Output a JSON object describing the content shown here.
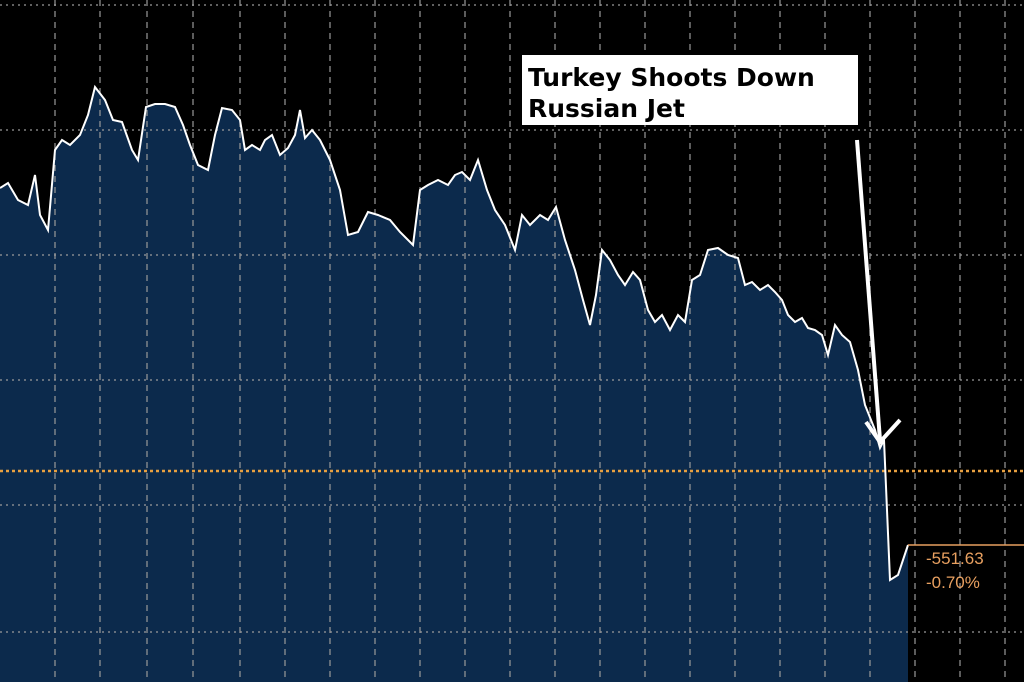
{
  "chart_data": {
    "type": "area",
    "annotation": [
      "Turkey Shoots Down",
      "Russian Jet"
    ],
    "x": [
      0,
      8,
      18,
      28,
      35,
      40,
      48,
      55,
      62,
      70,
      80,
      88,
      95,
      105,
      113,
      122,
      132,
      138,
      146,
      155,
      165,
      175,
      183,
      190,
      198,
      208,
      215,
      222,
      232,
      240,
      245,
      252,
      260,
      265,
      272,
      280,
      288,
      295,
      300,
      305,
      312,
      320,
      330,
      340,
      348,
      358,
      368,
      378,
      390,
      400,
      413,
      420,
      428,
      438,
      448,
      455,
      462,
      470,
      478,
      487,
      495,
      505,
      515,
      522,
      530,
      540,
      548,
      556,
      565,
      575,
      583,
      590,
      596,
      602,
      610,
      618,
      625,
      633,
      640,
      648,
      655,
      662,
      670,
      678,
      685,
      692,
      700,
      708,
      718,
      728,
      738,
      745,
      752,
      760,
      768,
      775,
      782,
      788,
      795,
      802,
      808,
      815,
      822,
      828,
      835,
      842,
      850,
      858,
      865,
      875,
      880,
      884,
      890,
      898,
      908
    ],
    "values": [
      494,
      499,
      482,
      477,
      507,
      467,
      452,
      532,
      542,
      537,
      547,
      567,
      595,
      582,
      562,
      560,
      532,
      522,
      575,
      578,
      578,
      575,
      557,
      537,
      517,
      512,
      547,
      574,
      572,
      562,
      532,
      537,
      532,
      542,
      547,
      527,
      534,
      547,
      572,
      544,
      552,
      542,
      522,
      492,
      447,
      450,
      470,
      467,
      462,
      450,
      437,
      492,
      497,
      502,
      497,
      507,
      510,
      502,
      522,
      492,
      472,
      457,
      432,
      467,
      457,
      467,
      462,
      475,
      442,
      412,
      382,
      357,
      387,
      432,
      422,
      407,
      397,
      410,
      402,
      372,
      360,
      367,
      352,
      367,
      360,
      402,
      407,
      432,
      434,
      427,
      424,
      397,
      400,
      392,
      397,
      390,
      382,
      367,
      360,
      364,
      354,
      352,
      347,
      327,
      357,
      347,
      340,
      312,
      277,
      252,
      234,
      242,
      102,
      107,
      137
    ],
    "color": "#ffffff",
    "fill": "#0c2a4c",
    "reference": 211,
    "reference_color": "#e8a040",
    "change": -551.63,
    "change_pct": {
      "value": -0.7,
      "label": "-0.70%"
    },
    "xlim": [
      0,
      1024
    ],
    "ylim": [
      0,
      682
    ],
    "xticks": [
      55,
      100,
      147,
      193,
      240,
      285,
      330,
      375,
      420,
      465,
      510,
      555,
      600,
      645,
      690,
      735,
      780,
      825,
      870,
      915,
      960,
      1005
    ],
    "yticks": [
      677,
      552,
      427,
      302,
      177,
      50
    ],
    "grid": true
  }
}
